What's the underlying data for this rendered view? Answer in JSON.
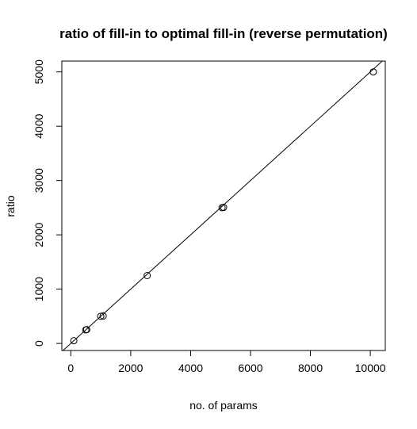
{
  "chart_data": {
    "type": "scatter",
    "title": "ratio of fill-in to optimal fill-in (reverse permutation)",
    "xlabel": "no. of params",
    "ylabel": "ratio",
    "xlim": [
      -300,
      10500
    ],
    "ylim": [
      -130,
      5200
    ],
    "x_ticks": [
      0,
      2000,
      4000,
      6000,
      8000,
      10000
    ],
    "y_ticks": [
      0,
      1000,
      2000,
      3000,
      4000,
      5000
    ],
    "grid": false,
    "legend": "none",
    "points": [
      {
        "x": 100,
        "y": 50
      },
      {
        "x": 500,
        "y": 250
      },
      {
        "x": 530,
        "y": 255
      },
      {
        "x": 1000,
        "y": 500
      },
      {
        "x": 1080,
        "y": 505
      },
      {
        "x": 2550,
        "y": 1250
      },
      {
        "x": 5050,
        "y": 2500
      },
      {
        "x": 5100,
        "y": 2505
      },
      {
        "x": 10100,
        "y": 5000
      }
    ],
    "reference_line": {
      "intercept": 0,
      "slope": 0.5
    }
  }
}
